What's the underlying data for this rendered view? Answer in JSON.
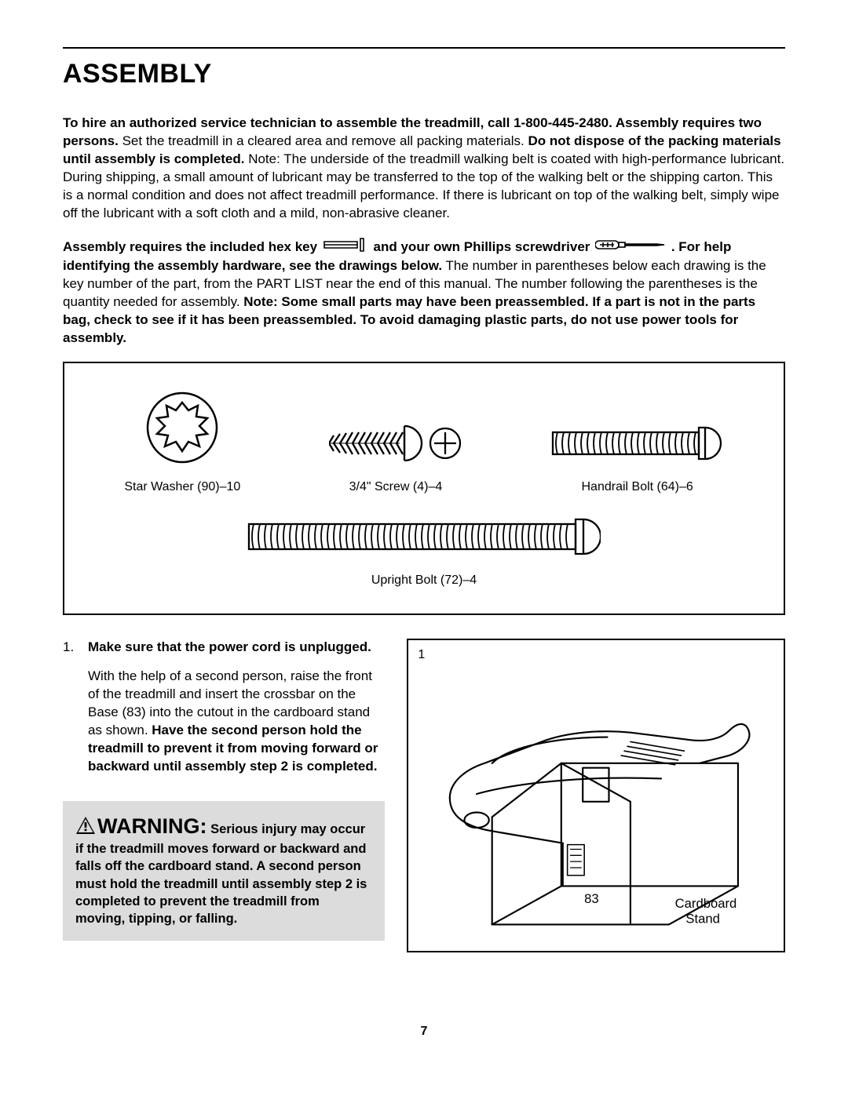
{
  "heading": "ASSEMBLY",
  "intro": {
    "bold1": "To hire an authorized service technician to assemble the treadmill, call 1-800-445-2480. Assembly requires two persons.",
    "plain1": " Set the treadmill in a cleared area and remove all packing materials. ",
    "bold2": "Do not dispose of the packing materials until assembly is completed.",
    "plain2": " Note: The underside of the treadmill walking belt is coated with high-performance lubricant. During shipping, a small amount of lubricant may be transferred to the top of the walking belt or the shipping carton. This is a normal condition and does not affect treadmill performance. If there is lubricant on top of the walking belt, simply wipe off the lubricant with a soft cloth and a mild, non-abrasive cleaner."
  },
  "tools": {
    "bold_pre_hex": "Assembly requires the included hex key ",
    "bold_mid": " and your own Phillips screwdriver ",
    "bold_post": " . For help identifying the assembly hardware, see the drawings below.",
    "plain": " The number in parentheses below each drawing is the key number of the part, from the PART LIST near the end of this manual. The number following the parentheses is the quantity needed for assembly. ",
    "bold_note": "Note: Some small parts may have been preassembled. If a part is not in the parts bag, check to see if it has been preassembled. To avoid damaging plastic parts, do not use power tools for assembly."
  },
  "hardware": {
    "star_washer": "Star Washer (90)–10",
    "screw": "3/4\" Screw (4)–4",
    "handrail_bolt": "Handrail Bolt (64)–6",
    "upright_bolt": "Upright Bolt (72)–4"
  },
  "step1": {
    "number": "1.",
    "bold_first": "Make sure that the power cord is unplugged.",
    "plain": "With the help of a second person, raise the front of the treadmill and insert the crossbar on the Base (83) into the cutout in the cardboard stand as shown. ",
    "bold_second": "Have the second person hold the treadmill to prevent it from moving forward or backward until assembly step 2 is completed."
  },
  "warning": {
    "label": "WARNING:",
    "lead": " Serious injury may occur if the treadmill moves forward or backward and falls off the cardboard stand. A second person must hold the treadmill until assembly step 2 is completed to prevent the treadmill from moving, tipping, or falling."
  },
  "figure": {
    "step_num": "1",
    "label_83": "83",
    "label_stand1": "Cardboard",
    "label_stand2": "Stand"
  },
  "page_number": "7",
  "colors": {
    "text": "#000000",
    "background": "#ffffff",
    "warning_bg": "#dcdcdc",
    "border": "#000000"
  }
}
